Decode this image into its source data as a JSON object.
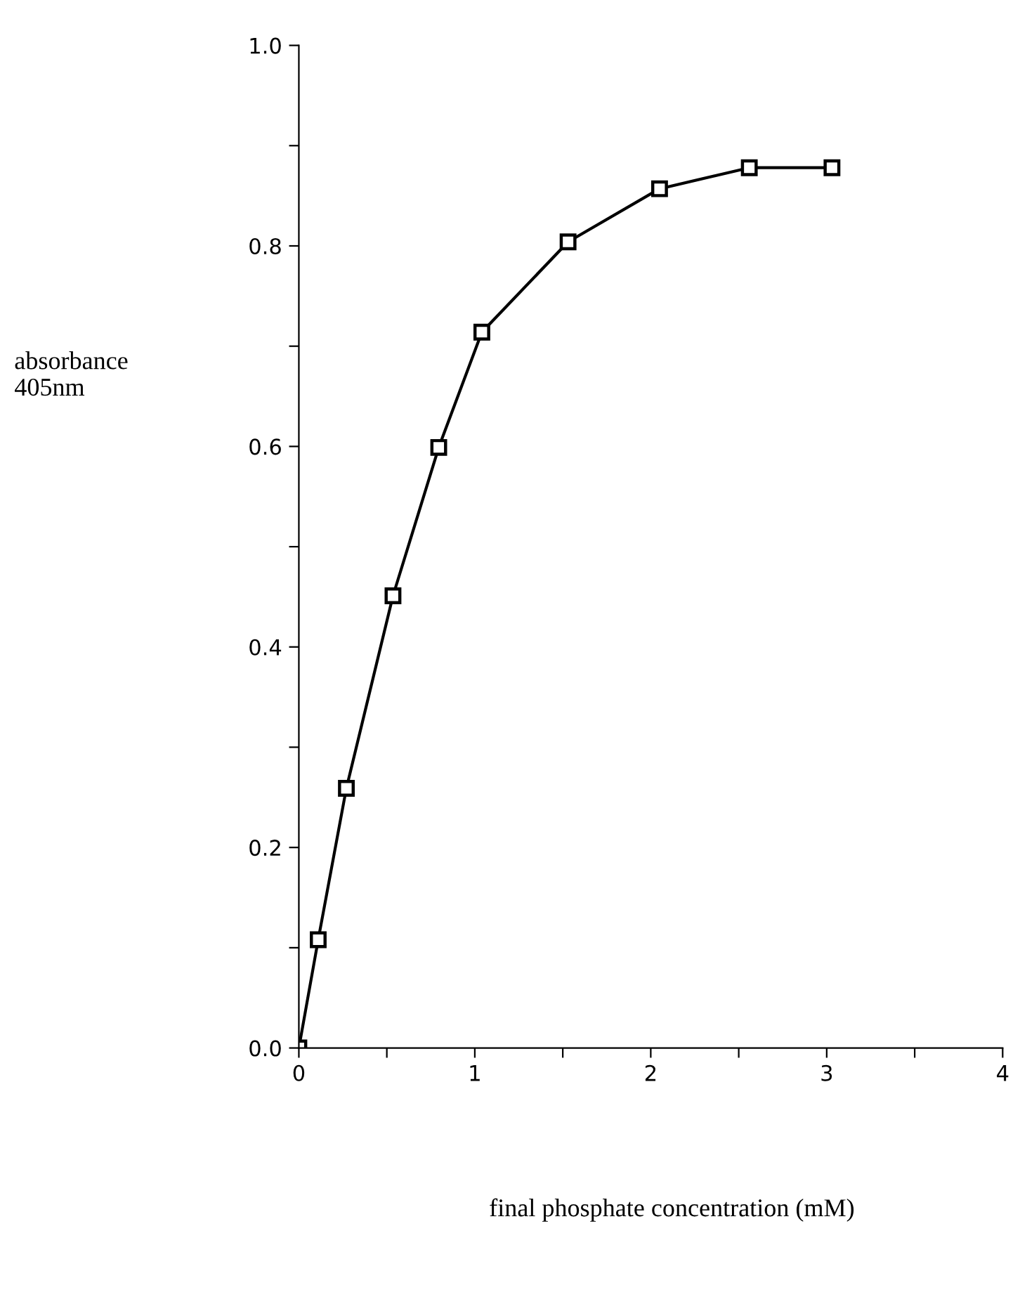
{
  "chart_data": {
    "type": "line",
    "xlabel": "final phosphate concentration (mM)",
    "ylabel": "absorbance\n405nm",
    "x": [
      0,
      0.11,
      0.27,
      0.535,
      0.795,
      1.04,
      1.53,
      2.05,
      2.56,
      3.03
    ],
    "series": [
      {
        "color": "#000000",
        "values": [
          0,
          0.108,
          0.259,
          0.451,
          0.599,
          0.714,
          0.804,
          0.857,
          0.878,
          0.878
        ]
      }
    ],
    "xlim": [
      0,
      4
    ],
    "ylim": [
      0,
      1
    ],
    "xticks": [
      0,
      {
        "value": 0.5,
        "label": null
      },
      1,
      {
        "value": 1.5,
        "label": null
      },
      2,
      {
        "value": 2.5,
        "label": null
      },
      3,
      {
        "value": 3.5,
        "label": null
      },
      4
    ],
    "yticks": [
      {
        "value": 0,
        "label": "0.0"
      },
      {
        "value": 0.1,
        "label": null
      },
      0.2,
      {
        "value": 0.3,
        "label": null
      },
      0.4,
      {
        "value": 0.5,
        "label": null
      },
      0.6,
      {
        "value": 0.7,
        "label": null
      },
      0.8,
      {
        "value": 0.9,
        "label": null
      },
      {
        "value": 1,
        "label": "1.0"
      }
    ],
    "grid": false,
    "legend": false,
    "marker": "square",
    "line_style": "solid"
  }
}
